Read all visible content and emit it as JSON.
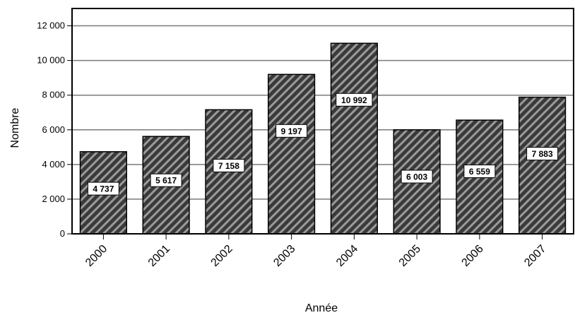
{
  "chart_data": {
    "type": "bar",
    "categories": [
      "2000",
      "2001",
      "2002",
      "2003",
      "2004",
      "2005",
      "2006",
      "2007"
    ],
    "values": [
      4737,
      5617,
      7158,
      9197,
      10992,
      6003,
      6559,
      7883
    ],
    "value_labels": [
      "4 737",
      "5 617",
      "7 158",
      "9 197",
      "10 992",
      "6 003",
      "6 559",
      "7 883"
    ],
    "xlabel": "Année",
    "ylabel": "Nombre",
    "ylim": [
      0,
      13000
    ],
    "yticks": [
      0,
      2000,
      4000,
      6000,
      8000,
      10000,
      12000
    ],
    "ytick_labels": [
      "0",
      "2 000",
      "4 000",
      "6 000",
      "8 000",
      "10 000",
      "12 000"
    ],
    "grid": true,
    "bar_fill": "#3a3a3a",
    "bar_hatch": "#9a9a9a"
  }
}
